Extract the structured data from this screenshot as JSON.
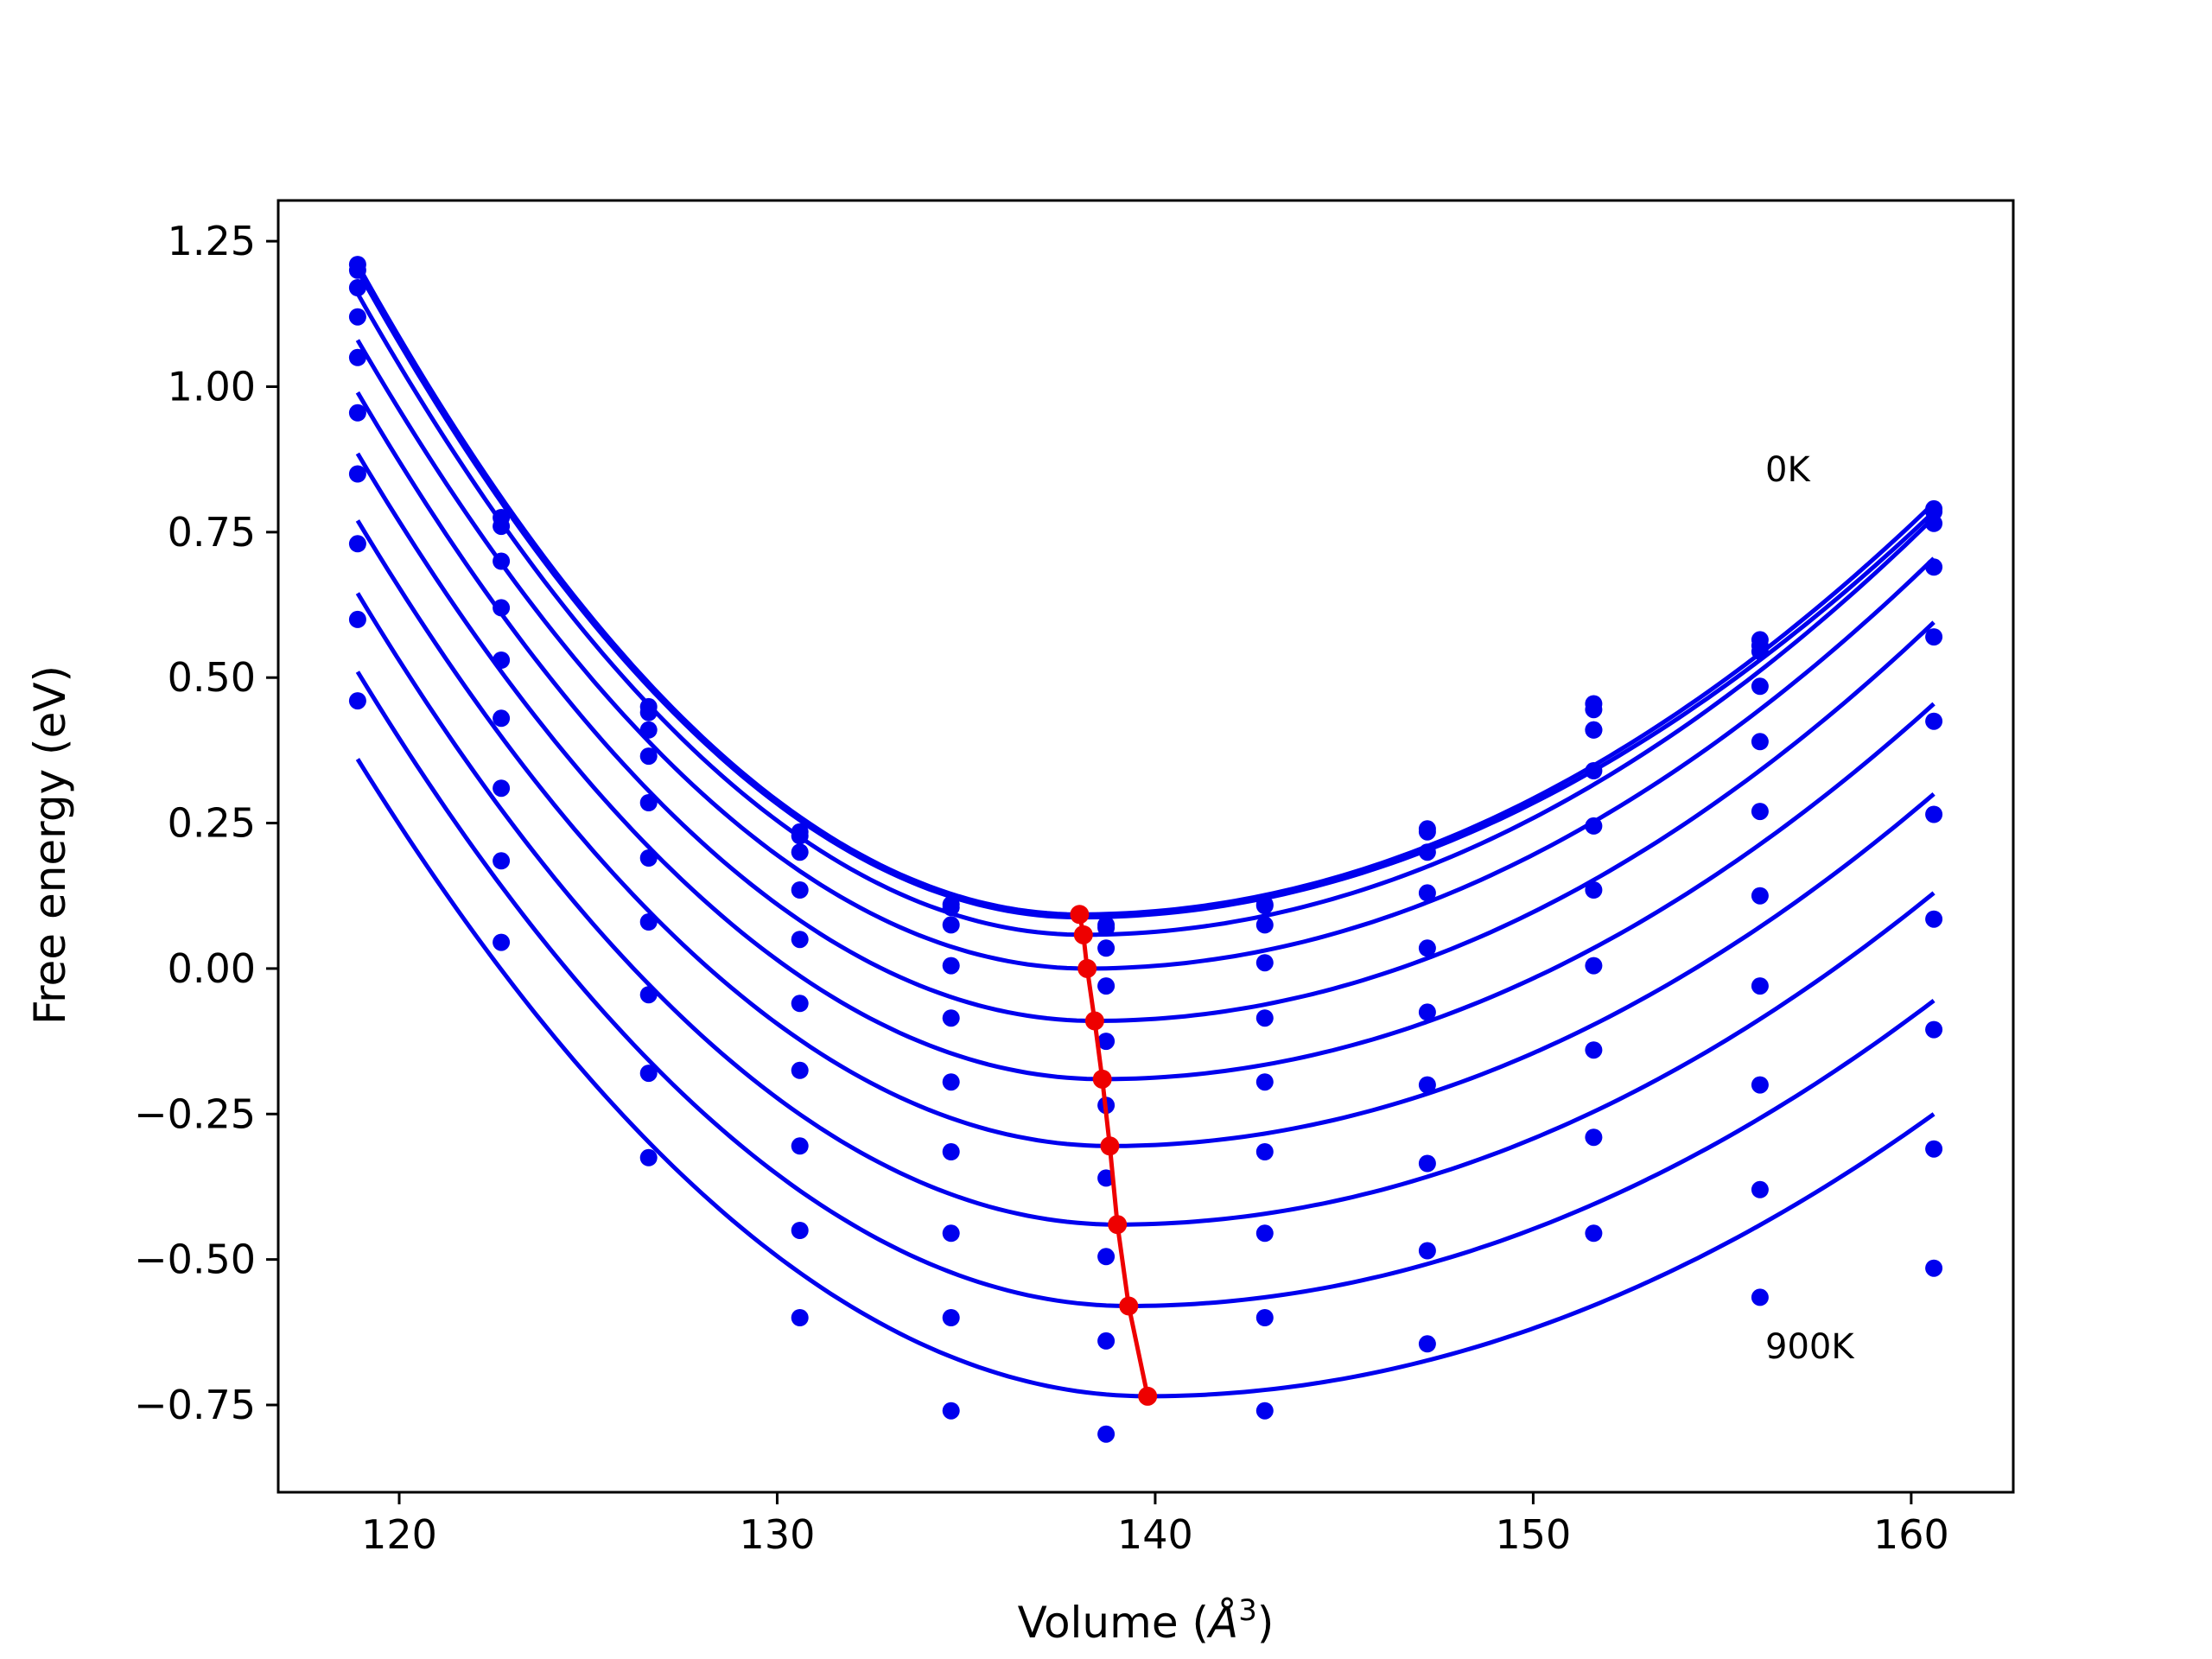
{
  "chart_data": {
    "type": "line",
    "xlabel_prefix": "Volume (",
    "xlabel_unit": "Å",
    "xlabel_sup": "3",
    "xlabel_suffix": ")",
    "ylabel": "Free energy (eV)",
    "xlim": [
      116.8,
      162.7
    ],
    "ylim": [
      -0.9,
      1.32
    ],
    "x_ticks": [
      120,
      130,
      140,
      150,
      160
    ],
    "x_tick_labels": [
      "120",
      "130",
      "140",
      "150",
      "160"
    ],
    "y_ticks": [
      -0.75,
      -0.5,
      -0.25,
      0.0,
      0.25,
      0.5,
      0.75,
      1.0,
      1.25
    ],
    "y_tick_labels": [
      "−0.75",
      "−0.50",
      "−0.25",
      "0.00",
      "0.25",
      "0.50",
      "0.75",
      "1.00",
      "1.25"
    ],
    "grid": false,
    "annotations": [
      {
        "text": "0K",
        "x": 155.9,
        "y": 0.83
      },
      {
        "text": "900K",
        "x": 155.9,
        "y": -0.68
      }
    ],
    "colors": {
      "fit": "#0000ee",
      "points": "#0000ee",
      "minimum": "#ee0000"
    },
    "volumes": [
      118.9,
      122.7,
      126.6,
      130.6,
      134.6,
      138.7,
      142.9,
      147.2,
      151.6,
      156.0,
      160.6
    ],
    "series": [
      {
        "fit_min": [
          138.0,
          0.093
        ],
        "points": [
          1.21,
          0.775,
          0.45,
          0.235,
          0.11,
          0.075,
          0.11,
          0.24,
          0.455,
          0.565,
          0.785
        ]
      },
      {
        "fit_min": [
          138.0,
          0.088
        ],
        "points": [
          1.2,
          0.76,
          0.44,
          0.228,
          0.105,
          0.07,
          0.108,
          0.235,
          0.445,
          0.555,
          0.79
        ]
      },
      {
        "fit_min": [
          138.1,
          0.058
        ],
        "points": [
          1.17,
          0.7,
          0.41,
          0.2,
          0.075,
          0.035,
          0.075,
          0.2,
          0.41,
          0.545,
          0.765
        ]
      },
      {
        "fit_min": [
          138.2,
          0.0
        ],
        "points": [
          1.12,
          0.62,
          0.365,
          0.135,
          0.005,
          -0.03,
          0.01,
          0.13,
          0.34,
          0.485,
          0.69
        ]
      },
      {
        "fit_min": [
          138.4,
          -0.09
        ],
        "points": [
          1.05,
          0.53,
          0.285,
          0.05,
          -0.085,
          -0.125,
          -0.085,
          0.035,
          0.245,
          0.39,
          0.57
        ]
      },
      {
        "fit_min": [
          138.6,
          -0.19
        ],
        "points": [
          0.955,
          0.43,
          0.19,
          -0.06,
          -0.195,
          -0.235,
          -0.195,
          -0.075,
          0.135,
          0.27,
          0.425
        ]
      },
      {
        "fit_min": [
          138.8,
          -0.305
        ],
        "points": [
          0.85,
          0.31,
          0.08,
          -0.175,
          -0.315,
          -0.36,
          -0.315,
          -0.2,
          0.005,
          0.125,
          0.265
        ]
      },
      {
        "fit_min": [
          139.0,
          -0.44
        ],
        "points": [
          0.73,
          0.185,
          -0.045,
          -0.305,
          -0.455,
          -0.495,
          -0.455,
          -0.335,
          -0.14,
          -0.03,
          0.085
        ]
      },
      {
        "fit_min": [
          139.3,
          -0.58
        ],
        "points": [
          0.6,
          0.045,
          -0.18,
          -0.45,
          -0.6,
          -0.64,
          -0.6,
          -0.485,
          -0.29,
          -0.2,
          -0.105
        ]
      },
      {
        "fit_min": [
          139.8,
          -0.735
        ],
        "points": [
          0.46,
          null,
          -0.325,
          -0.6,
          -0.76,
          -0.8,
          -0.76,
          -0.645,
          -0.455,
          -0.38,
          -0.31
        ]
      }
    ],
    "fit_ends": [
      [
        1.21,
        0.8
      ],
      [
        1.2,
        0.785
      ],
      [
        1.16,
        0.775
      ],
      [
        1.08,
        0.705
      ],
      [
        0.99,
        0.595
      ],
      [
        0.885,
        0.455
      ],
      [
        0.77,
        0.3
      ],
      [
        0.645,
        0.13
      ],
      [
        0.51,
        -0.055
      ],
      [
        0.36,
        -0.25
      ]
    ],
    "extra_points": [
      {
        "x": 151.6,
        "y": 0.41
      },
      {
        "x": 156.0,
        "y": -0.565
      },
      {
        "x": 160.6,
        "y": -0.515
      }
    ],
    "minimum_curve": [
      [
        138.0,
        0.093
      ],
      [
        138.1,
        0.058
      ],
      [
        138.2,
        0.0
      ],
      [
        138.4,
        -0.09
      ],
      [
        138.6,
        -0.19
      ],
      [
        138.8,
        -0.305
      ],
      [
        139.0,
        -0.44
      ],
      [
        139.3,
        -0.58
      ],
      [
        139.8,
        -0.735
      ]
    ]
  }
}
